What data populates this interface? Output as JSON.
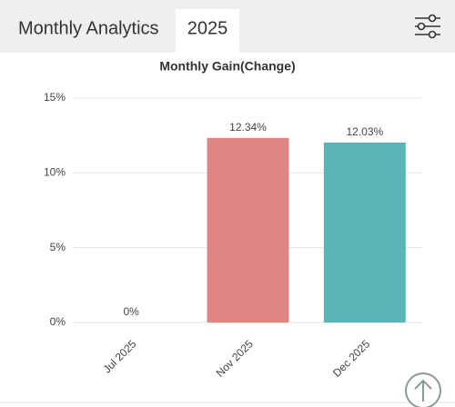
{
  "header": {
    "title": "Monthly Analytics",
    "year": "2025"
  },
  "chart_data": {
    "type": "bar",
    "title": "Monthly Gain(Change)",
    "categories": [
      "Jul 2025",
      "Nov 2025",
      "Dec 2025"
    ],
    "values": [
      0,
      12.34,
      12.03
    ],
    "value_labels": [
      "0%",
      "12.34%",
      "12.03%"
    ],
    "colors": [
      "#e08585",
      "#e08585",
      "#5bb5b5"
    ],
    "ylim": [
      0,
      15
    ],
    "yticks": [
      {
        "value": 0,
        "label": "0%"
      },
      {
        "value": 5,
        "label": "5%"
      },
      {
        "value": 10,
        "label": "10%"
      },
      {
        "value": 15,
        "label": "15%"
      }
    ],
    "grid": true
  }
}
